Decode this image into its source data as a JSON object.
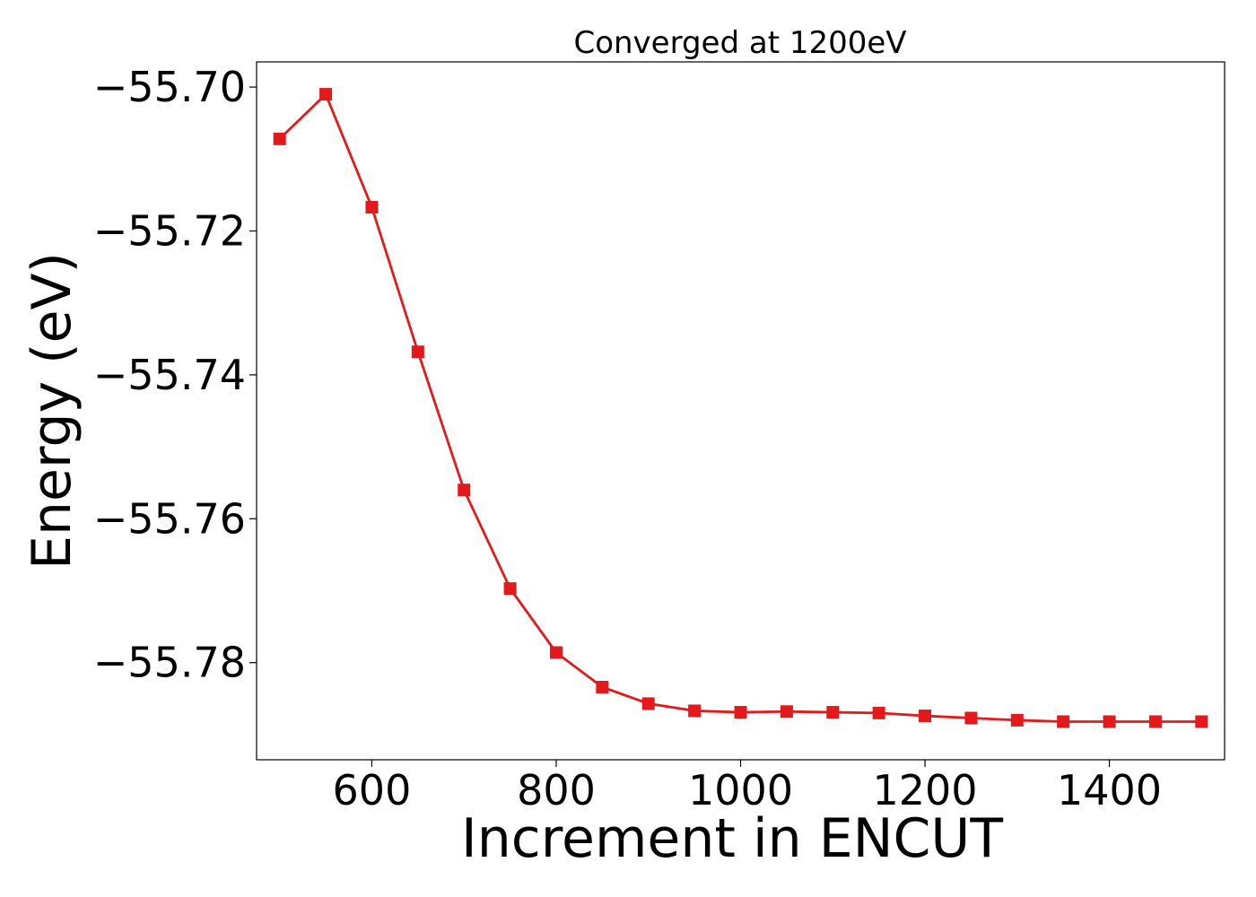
{
  "chart_data": {
    "type": "line",
    "title": "Converged at 1200eV",
    "xlabel": "Increment in ENCUT",
    "ylabel": "Energy (eV)",
    "xlim": [
      475,
      1525
    ],
    "ylim": [
      -55.7935,
      -55.6965
    ],
    "x_ticks": [
      600,
      800,
      1000,
      1200,
      1400
    ],
    "y_ticks": [
      -55.7,
      -55.72,
      -55.74,
      -55.76,
      -55.78
    ],
    "x_tick_labels": [
      "600",
      "800",
      "1000",
      "1200",
      "1400"
    ],
    "y_tick_labels": [
      "−55.70",
      "−55.72",
      "−55.74",
      "−55.76",
      "−55.78"
    ],
    "grid": false,
    "series": [
      {
        "color": "#e31a1c",
        "marker": "square",
        "x": [
          500,
          550,
          600,
          650,
          700,
          750,
          800,
          850,
          900,
          950,
          1000,
          1050,
          1100,
          1150,
          1200,
          1250,
          1300,
          1350,
          1400,
          1450,
          1500
        ],
        "y": [
          -55.7072,
          -55.701,
          -55.7167,
          -55.7368,
          -55.756,
          -55.7697,
          -55.7786,
          -55.7834,
          -55.7857,
          -55.7867,
          -55.7869,
          -55.7868,
          -55.7869,
          -55.787,
          -55.7874,
          -55.7877,
          -55.788,
          -55.7882,
          -55.7882,
          -55.7882,
          -55.7882
        ]
      }
    ]
  }
}
